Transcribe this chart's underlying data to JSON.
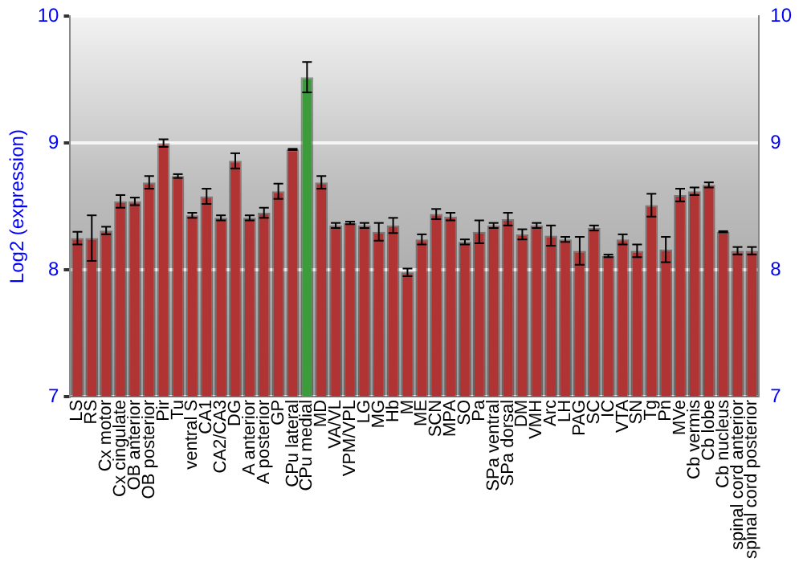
{
  "chart_data": {
    "type": "bar",
    "ylabel": "Log2 (expression)",
    "categories": [
      "LS",
      "RS",
      "Cx motor",
      "Cx cingulate",
      "OB anterior",
      "OB posterior",
      "Pir",
      "Tu",
      "ventral S",
      "CA1",
      "CA2/CA3",
      "DG",
      "A anterior",
      "A posterior",
      "GP",
      "CPu lateral",
      "CPu medial",
      "MD",
      "VA/VL",
      "VPM/VPL",
      "LG",
      "MG",
      "Hb",
      "M",
      "ME",
      "SCN",
      "MPA",
      "SO",
      "Pa",
      "SPa ventral",
      "SPa dorsal",
      "DM",
      "VMH",
      "Arc",
      "LH",
      "PAG",
      "SC",
      "IC",
      "VTA",
      "SN",
      "Tg",
      "Pn",
      "MVe",
      "Cb vermis",
      "Cb lobe",
      "Cb nucleus",
      "spinal cord anterior",
      "spinal cord posterior"
    ],
    "values": [
      8.25,
      8.25,
      8.31,
      8.54,
      8.54,
      8.69,
      9.0,
      8.74,
      8.43,
      8.58,
      8.41,
      8.86,
      8.41,
      8.45,
      8.62,
      8.95,
      9.52,
      8.69,
      8.35,
      8.37,
      8.35,
      8.3,
      8.35,
      7.98,
      8.24,
      8.44,
      8.42,
      8.22,
      8.3,
      8.35,
      8.4,
      8.28,
      8.35,
      8.27,
      8.24,
      8.15,
      8.33,
      8.11,
      8.24,
      8.15,
      8.51,
      8.16,
      8.59,
      8.62,
      8.67,
      8.3,
      8.15,
      8.15
    ],
    "errors": [
      0.05,
      0.18,
      0.03,
      0.05,
      0.03,
      0.05,
      0.03,
      0.015,
      0.02,
      0.06,
      0.02,
      0.06,
      0.02,
      0.04,
      0.06,
      0.005,
      0.12,
      0.05,
      0.02,
      0.01,
      0.02,
      0.07,
      0.06,
      0.03,
      0.04,
      0.04,
      0.03,
      0.02,
      0.09,
      0.02,
      0.05,
      0.04,
      0.02,
      0.08,
      0.02,
      0.11,
      0.02,
      0.01,
      0.04,
      0.05,
      0.09,
      0.1,
      0.05,
      0.03,
      0.02,
      0.005,
      0.03,
      0.03
    ],
    "colors": [
      "#b03434",
      "#b03434",
      "#b03434",
      "#b03434",
      "#b03434",
      "#b03434",
      "#b03434",
      "#b03434",
      "#b03434",
      "#b03434",
      "#b03434",
      "#b03434",
      "#b03434",
      "#b03434",
      "#b03434",
      "#b03434",
      "#3c9c3c",
      "#b03434",
      "#b03434",
      "#b03434",
      "#b03434",
      "#b03434",
      "#b03434",
      "#b03434",
      "#b03434",
      "#b03434",
      "#b03434",
      "#b03434",
      "#b03434",
      "#b03434",
      "#b03434",
      "#b03434",
      "#b03434",
      "#b03434",
      "#b03434",
      "#b03434",
      "#b03434",
      "#b03434",
      "#b03434",
      "#b03434",
      "#b03434",
      "#b03434",
      "#b03434",
      "#b03434",
      "#b03434",
      "#b03434",
      "#b03434",
      "#b03434"
    ],
    "ylim": [
      7,
      10
    ],
    "yticks": [
      7,
      8,
      9,
      10
    ],
    "y2lim": [
      7,
      10
    ],
    "y2ticks": [
      7,
      8,
      9,
      10
    ],
    "grid": "y",
    "legend": false
  }
}
